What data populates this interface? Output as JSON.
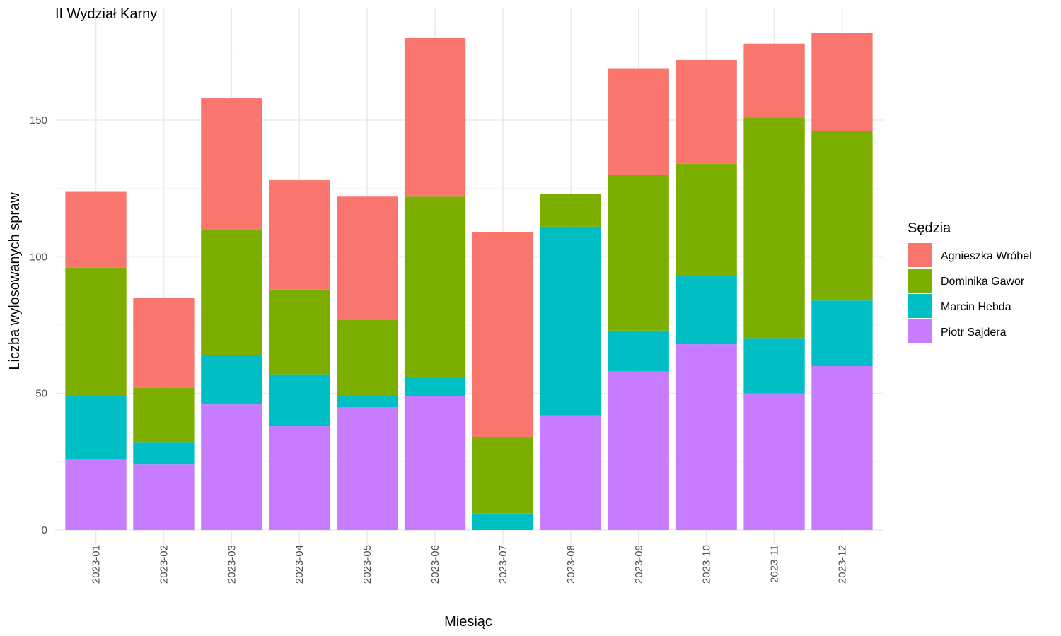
{
  "chart_data": {
    "type": "bar",
    "stacked": true,
    "title": "II Wydział Karny",
    "xlabel": "Miesiąc",
    "ylabel": "Liczba wylosowanych spraw",
    "ylim": [
      0,
      190
    ],
    "yticks": [
      0,
      50,
      100,
      150
    ],
    "grid": true,
    "legend_position": "right",
    "legend_title": "Sędzia",
    "categories": [
      "2023-01",
      "2023-02",
      "2023-03",
      "2023-04",
      "2023-05",
      "2023-06",
      "2023-07",
      "2023-08",
      "2023-09",
      "2023-10",
      "2023-11",
      "2023-12"
    ],
    "series": [
      {
        "name": "Piotr Sajdera",
        "color": "#C77CFF",
        "values": [
          26,
          24,
          46,
          38,
          45,
          49,
          0,
          42,
          58,
          68,
          50,
          60
        ]
      },
      {
        "name": "Marcin Hebda",
        "color": "#00BFC4",
        "values": [
          23,
          8,
          18,
          19,
          4,
          7,
          6,
          69,
          15,
          25,
          20,
          24
        ]
      },
      {
        "name": "Dominika Gawor",
        "color": "#7CAE00",
        "values": [
          47,
          20,
          46,
          31,
          28,
          66,
          28,
          12,
          57,
          41,
          81,
          62
        ]
      },
      {
        "name": "Agnieszka Wróbel",
        "color": "#F8766D",
        "values": [
          28,
          33,
          48,
          40,
          45,
          58,
          75,
          0,
          39,
          38,
          27,
          36
        ]
      }
    ],
    "legend_order": [
      "Agnieszka Wróbel",
      "Dominika Gawor",
      "Marcin Hebda",
      "Piotr Sajdera"
    ]
  }
}
